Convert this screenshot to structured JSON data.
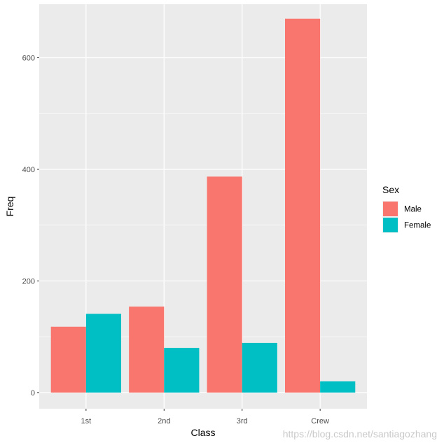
{
  "chart_data": {
    "type": "bar",
    "xlabel": "Class",
    "ylabel": "Freq",
    "categories": [
      "1st",
      "2nd",
      "3rd",
      "Crew"
    ],
    "series": [
      {
        "name": "Male",
        "values": [
          118,
          154,
          387,
          670
        ],
        "color": "#F8766D"
      },
      {
        "name": "Female",
        "values": [
          141,
          80,
          89,
          20
        ],
        "color": "#00BFC4"
      }
    ],
    "ylim": [
      -29,
      696
    ],
    "yticks": [
      0,
      200,
      400,
      600
    ],
    "legend": {
      "title": "Sex",
      "position": "right"
    },
    "grid": true,
    "background": "#EBEBEB",
    "gridcolor": "#FFFFFF"
  },
  "watermark": "https://blog.csdn.net/santiagozhang"
}
